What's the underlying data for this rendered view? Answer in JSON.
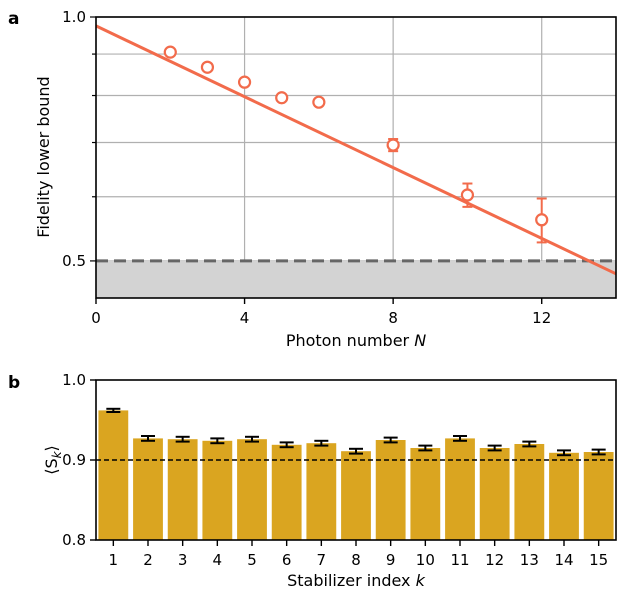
{
  "chart_data": [
    {
      "panel": "a",
      "type": "scatter",
      "xlabel": "Photon number",
      "xlabel_var": "N",
      "ylabel": "Fidelity lower bound",
      "xlim": [
        0,
        14
      ],
      "ylim": [
        0.45,
        1.0
      ],
      "yscale": "log",
      "xticks": [
        0,
        4,
        8,
        12
      ],
      "yticks": [
        0.5,
        1.0
      ],
      "ytick_labels": [
        "0.5",
        "1.0"
      ],
      "grid": true,
      "colors": {
        "series": "#f26b4b",
        "threshold": "#666666",
        "shade": "#d3d3d3"
      },
      "series": [
        {
          "x": [
            2,
            3,
            4,
            5,
            6,
            8,
            10,
            12
          ],
          "y": [
            0.905,
            0.867,
            0.831,
            0.795,
            0.785,
            0.695,
            0.603,
            0.562
          ],
          "yerr": [
            0.004,
            0.004,
            0.004,
            0.005,
            0.006,
            0.012,
            0.02,
            0.035
          ]
        }
      ],
      "fit_line": {
        "x": [
          0,
          14
        ],
        "y": [
          0.975,
          0.482
        ]
      },
      "threshold_line": {
        "y": 0.5,
        "style": "dashed"
      },
      "shaded_region": {
        "y_from": 0.45,
        "y_to": 0.5
      }
    },
    {
      "panel": "b",
      "type": "bar",
      "xlabel": "Stabilizer index",
      "xlabel_var": "k",
      "ylabel": "⟨S",
      "ylabel_sub": "k",
      "ylabel_close": "⟩",
      "categories": [
        "1",
        "2",
        "3",
        "4",
        "5",
        "6",
        "7",
        "8",
        "9",
        "10",
        "11",
        "12",
        "13",
        "14",
        "15"
      ],
      "values": [
        0.962,
        0.927,
        0.926,
        0.924,
        0.926,
        0.919,
        0.921,
        0.911,
        0.925,
        0.915,
        0.927,
        0.915,
        0.92,
        0.909,
        0.91
      ],
      "errors": [
        0.002,
        0.003,
        0.003,
        0.003,
        0.003,
        0.003,
        0.003,
        0.003,
        0.003,
        0.003,
        0.003,
        0.003,
        0.003,
        0.003,
        0.003
      ],
      "ylim": [
        0.8,
        1.0
      ],
      "yticks": [
        0.8,
        0.9,
        1.0
      ],
      "ytick_labels": [
        "0.8",
        "0.9",
        "1.0"
      ],
      "threshold_line": {
        "y": 0.9,
        "style": "dashed"
      },
      "colors": {
        "bar": "#daa520",
        "error": "#000000"
      }
    }
  ]
}
